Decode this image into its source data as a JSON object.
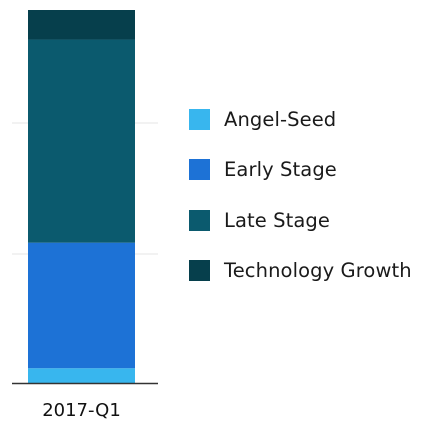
{
  "chart_data": {
    "type": "bar",
    "stacked": true,
    "categories": [
      "2017-Q1"
    ],
    "series": [
      {
        "name": "Angel-Seed",
        "values": [
          4
        ],
        "color": "#38b6ee"
      },
      {
        "name": "Early Stage",
        "values": [
          34
        ],
        "color": "#1d72d6"
      },
      {
        "name": "Late Stage",
        "values": [
          55
        ],
        "color": "#0b5a6e"
      },
      {
        "name": "Technology Growth",
        "values": [
          8
        ],
        "color": "#063f4c"
      }
    ],
    "title": "",
    "xlabel": "",
    "ylabel": "",
    "ylim": [
      0,
      101
    ],
    "grid": true,
    "legend_position": "right"
  }
}
